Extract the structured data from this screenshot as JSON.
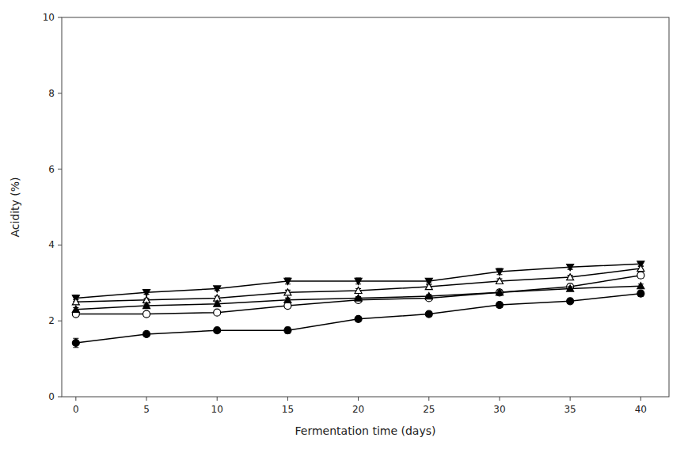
{
  "chart_data": {
    "type": "line",
    "xlabel": "Fermentation time (days)",
    "ylabel": "Acidity (%)",
    "x": [
      0,
      5,
      10,
      15,
      20,
      25,
      30,
      35,
      40
    ],
    "color": "black",
    "grid": false,
    "series": [
      {
        "values": [
          2.6,
          2.75,
          2.85,
          3.05,
          3.05,
          3.05,
          3.3,
          3.42,
          3.5
        ],
        "errors": [
          0.08,
          0.05,
          0.05,
          0.08,
          0.08,
          0.05,
          0.08,
          0.06,
          0.06
        ],
        "marker": "filled-triangle-down"
      },
      {
        "values": [
          2.5,
          2.55,
          2.6,
          2.75,
          2.8,
          2.9,
          3.05,
          3.15,
          3.38
        ],
        "errors": [
          0.06,
          0.04,
          0.05,
          0.06,
          0.05,
          0.05,
          0.06,
          0.05,
          0.06
        ],
        "marker": "open-triangle-up"
      },
      {
        "values": [
          2.18,
          2.18,
          2.22,
          2.4,
          2.55,
          2.6,
          2.75,
          2.9,
          3.2
        ],
        "errors": [
          0.06,
          0.05,
          0.05,
          0.06,
          0.06,
          0.06,
          0.06,
          0.06,
          0.07
        ],
        "marker": "open-circle"
      },
      {
        "values": [
          2.3,
          2.4,
          2.45,
          2.55,
          2.6,
          2.65,
          2.75,
          2.85,
          2.92
        ],
        "errors": [
          0.05,
          0.04,
          0.04,
          0.05,
          0.04,
          0.04,
          0.05,
          0.05,
          0.05
        ],
        "marker": "filled-triangle-up"
      },
      {
        "values": [
          1.42,
          1.65,
          1.75,
          1.75,
          2.05,
          2.18,
          2.42,
          2.52,
          2.72
        ],
        "errors": [
          0.12,
          0.05,
          0.05,
          0.08,
          0.06,
          0.06,
          0.07,
          0.06,
          0.07
        ],
        "marker": "filled-circle"
      }
    ],
    "xlim": [
      -1,
      42
    ],
    "ylim": [
      0,
      10
    ],
    "xticks": [
      0,
      5,
      10,
      15,
      20,
      25,
      30,
      35,
      40
    ],
    "yticks": [
      0,
      2,
      4,
      6,
      8,
      10
    ]
  }
}
